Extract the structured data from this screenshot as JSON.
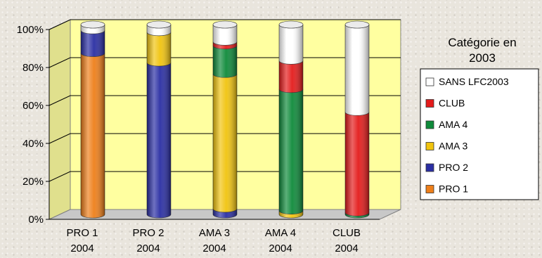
{
  "chart_data": {
    "type": "bar",
    "stacked": "percent",
    "categories": [
      "PRO 1\n2004",
      "PRO 2\n2004",
      "AMA 3\n2004",
      "AMA 4\n2004",
      "CLUB\n2004"
    ],
    "series": [
      {
        "name": "PRO 1",
        "color": "#ee7f1a",
        "values": [
          85,
          0,
          0,
          0,
          0
        ]
      },
      {
        "name": "PRO 2",
        "color": "#2a2ea3",
        "values": [
          12,
          80,
          3,
          0,
          0
        ]
      },
      {
        "name": "AMA 3",
        "color": "#f1c40f",
        "values": [
          0,
          16,
          71,
          2,
          0
        ]
      },
      {
        "name": "AMA 4",
        "color": "#0e8a3a",
        "values": [
          0,
          0,
          15,
          64,
          1
        ]
      },
      {
        "name": "CLUB",
        "color": "#e41b1b",
        "values": [
          0,
          0,
          2,
          15,
          53
        ]
      },
      {
        "name": "SANS LFC2003",
        "color": "#ffffff",
        "values": [
          3,
          4,
          9,
          19,
          46
        ]
      }
    ],
    "y_ticks": [
      "0%",
      "20%",
      "40%",
      "60%",
      "80%",
      "100%"
    ],
    "ylim": [
      0,
      100
    ],
    "legend": {
      "title_lines": [
        "Catégorie en",
        "2003"
      ],
      "position": "right",
      "order": [
        "SANS LFC2003",
        "CLUB",
        "AMA 4",
        "AMA 3",
        "PRO 2",
        "PRO 1"
      ]
    },
    "grid": true,
    "three_d": true,
    "colors": {
      "wall": "#ffffa0",
      "floor": "#c8c8c8",
      "grid": "#000000"
    }
  }
}
